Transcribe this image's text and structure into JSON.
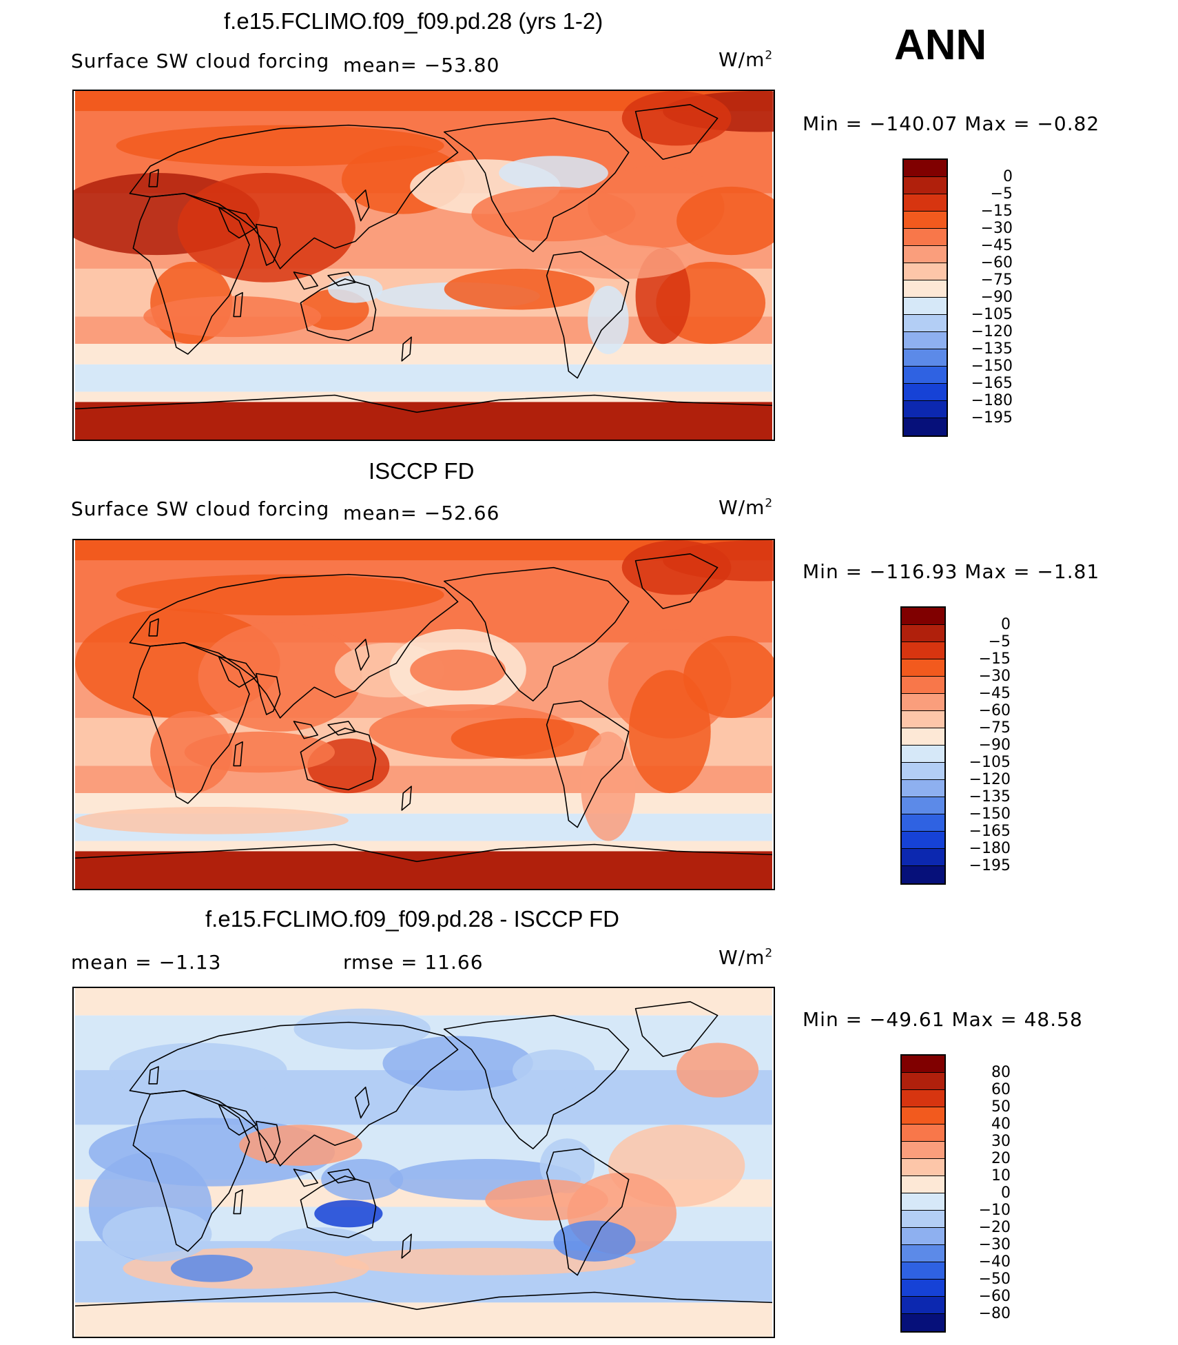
{
  "season": "ANN",
  "units_label": "W/m",
  "units_sup": "2",
  "colorbar_colors": [
    "#800000",
    "#b0200c",
    "#d73510",
    "#f25a1e",
    "#f8774a",
    "#fa9e7c",
    "#fdc6a9",
    "#fde8d6",
    "#d6e8f8",
    "#b3cef5",
    "#8eb0f0",
    "#5c8ae8",
    "#2f62e2",
    "#1642d6",
    "#0c28b0",
    "#06107a"
  ],
  "panels": [
    {
      "title": "f.e15.FCLIMO.f09_f09.pd.28 (yrs 1-2)",
      "left_label": "Surface SW cloud forcing",
      "mean_label": "mean=  −53.80",
      "minmax": "Min  =  −140.07  Max  =    −0.82",
      "colorbar_ticks": [
        "0",
        "−5",
        "−15",
        "−30",
        "−45",
        "−60",
        "−75",
        "−90",
        "−105",
        "−120",
        "−135",
        "−150",
        "−165",
        "−180",
        "−195"
      ]
    },
    {
      "title": "ISCCP FD",
      "left_label": "Surface SW cloud forcing",
      "mean_label": "mean=  −52.66",
      "minmax": "Min  =  −116.93  Max  =    −1.81",
      "colorbar_ticks": [
        "0",
        "−5",
        "−15",
        "−30",
        "−45",
        "−60",
        "−75",
        "−90",
        "−105",
        "−120",
        "−135",
        "−150",
        "−165",
        "−180",
        "−195"
      ]
    },
    {
      "title": "f.e15.FCLIMO.f09_f09.pd.28 - ISCCP FD",
      "left_label": "mean  =    −1.13",
      "mean_label": "rmse  =    11.66",
      "minmax": "Min  =  −49.61  Max  =    48.58",
      "colorbar_ticks": [
        "80",
        "60",
        "50",
        "40",
        "30",
        "20",
        "10",
        "0",
        "−10",
        "−20",
        "−30",
        "−40",
        "−50",
        "−60",
        "−80"
      ]
    }
  ],
  "chart_data": [
    {
      "type": "heatmap",
      "title": "f.e15.FCLIMO.f09_f09.pd.28 (yrs 1-2)",
      "variable": "Surface SW cloud forcing",
      "units": "W/m2",
      "mean": -53.8,
      "min": -140.07,
      "max": -0.82,
      "contour_levels": [
        0,
        -5,
        -15,
        -30,
        -45,
        -60,
        -75,
        -90,
        -105,
        -120,
        -135,
        -150,
        -165,
        -180,
        -195
      ]
    },
    {
      "type": "heatmap",
      "title": "ISCCP FD",
      "variable": "Surface SW cloud forcing",
      "units": "W/m2",
      "mean": -52.66,
      "min": -116.93,
      "max": -1.81,
      "contour_levels": [
        0,
        -5,
        -15,
        -30,
        -45,
        -60,
        -75,
        -90,
        -105,
        -120,
        -135,
        -150,
        -165,
        -180,
        -195
      ]
    },
    {
      "type": "heatmap",
      "title": "f.e15.FCLIMO.f09_f09.pd.28 - ISCCP FD",
      "units": "W/m2",
      "mean": -1.13,
      "rmse": 11.66,
      "min": -49.61,
      "max": 48.58,
      "contour_levels": [
        80,
        60,
        50,
        40,
        30,
        20,
        10,
        0,
        -10,
        -20,
        -30,
        -40,
        -50,
        -60,
        -80
      ]
    }
  ]
}
